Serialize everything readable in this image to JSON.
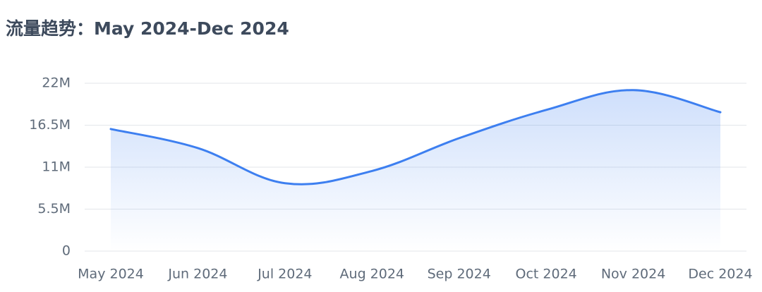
{
  "chart_data": {
    "type": "area",
    "title": "流量趋势：May 2024-Dec 2024",
    "categories": [
      "May 2024",
      "Jun 2024",
      "Jul 2024",
      "Aug 2024",
      "Sep 2024",
      "Oct 2024",
      "Nov 2024",
      "Dec 2024"
    ],
    "values": [
      16000000,
      13500000,
      8900000,
      10500000,
      14800000,
      18500000,
      21100000,
      18200000
    ],
    "color": "#3d7ff0",
    "ylim": [
      0,
      22000000
    ],
    "yticks": [
      0,
      {
        "value": 5500000,
        "label": "5.5M"
      },
      {
        "value": 11000000,
        "label": "11M"
      },
      {
        "value": 16500000,
        "label": "16.5M"
      },
      {
        "value": 22000000,
        "label": "22M"
      }
    ],
    "grid": true
  }
}
